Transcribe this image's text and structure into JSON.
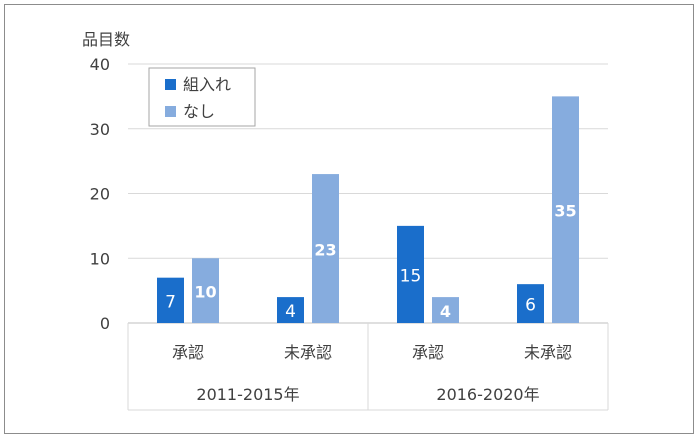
{
  "chart_data": {
    "type": "bar",
    "ylabel": "品目数",
    "ylim": [
      0,
      40
    ],
    "yticks": [
      0,
      10,
      20,
      30,
      40
    ],
    "grid": true,
    "legend_position": "top-left",
    "groups": [
      {
        "label": "2011-2015年",
        "categories": [
          "承認",
          "未承認"
        ]
      },
      {
        "label": "2016-2020年",
        "categories": [
          "承認",
          "未承認"
        ]
      }
    ],
    "categories": [
      "承認",
      "未承認",
      "承認",
      "未承認"
    ],
    "series": [
      {
        "name": "組入れ",
        "color": "#1a6ecb",
        "values": [
          7,
          4,
          15,
          6
        ]
      },
      {
        "name": "なし",
        "color": "#86acde",
        "values": [
          10,
          23,
          4,
          35
        ]
      }
    ]
  }
}
